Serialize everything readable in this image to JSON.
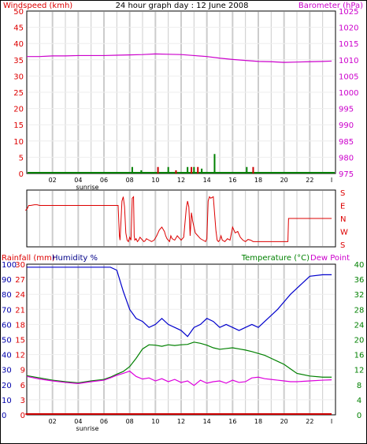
{
  "title": "24 hour graph day : 12 June 2008",
  "colors": {
    "wind": "#008000",
    "gust": "#cc0000",
    "barometer": "#cc00cc",
    "direction": "#dd0000",
    "humidity": "#0000cc",
    "temperature": "#008000",
    "dew": "#dd00dd",
    "rain": "#cc0000",
    "grid": "#cccccc",
    "red_label": "#dd0000",
    "green_label": "#008000",
    "magenta_label": "#cc00cc",
    "axis": "#000000"
  },
  "x_ticks": [
    "02",
    "04",
    "06",
    "08",
    "10",
    "12",
    "14",
    "16",
    "18",
    "20",
    "22",
    "I"
  ],
  "sunrise_label": "sunrise",
  "panel1": {
    "left_label": "Windspeed (kmh)",
    "right_label": "Barometer (hPa)",
    "left_ticks": [
      "0",
      "5",
      "10",
      "15",
      "20",
      "25",
      "30",
      "35",
      "40",
      "45",
      "50"
    ],
    "right_ticks": [
      "975",
      "980",
      "985",
      "990",
      "995",
      "1000",
      "1005",
      "1010",
      "1015",
      "1020",
      "1025"
    ]
  },
  "panel2": {
    "right_ticks": [
      "S",
      "E",
      "N",
      "W",
      "S"
    ]
  },
  "panel3": {
    "left_label_rain": "Rainfall (mm)",
    "left_label_hum": "Humidity %",
    "right_label_temp": "Temperature (°C)",
    "right_label_dew": "Dew Point",
    "hum_ticks": [
      "0",
      "10",
      "20",
      "30",
      "40",
      "50",
      "60",
      "70",
      "80",
      "90",
      "100"
    ],
    "rain_ticks": [
      "0",
      "3",
      "6",
      "9",
      "12",
      "15",
      "18",
      "21",
      "24",
      "27",
      "30"
    ],
    "temp_ticks": [
      "0",
      "4",
      "8",
      "12",
      "16",
      "20",
      "24",
      "28",
      "32",
      "36",
      "40"
    ]
  },
  "chart_data": [
    {
      "type": "line",
      "panel": "wind_barometer",
      "xlim": [
        0,
        24
      ],
      "ylim_left": [
        0,
        50
      ],
      "ylim_right": [
        975,
        1025
      ],
      "series": [
        {
          "name": "Barometer",
          "axis": "right",
          "x": [
            0,
            1,
            2,
            3,
            4,
            5,
            6,
            7,
            8,
            9,
            10,
            11,
            12,
            13,
            14,
            15,
            16,
            17,
            18,
            19,
            20,
            21,
            22,
            23,
            23.7
          ],
          "y": [
            1011,
            1011,
            1011.2,
            1011.2,
            1011.3,
            1011.3,
            1011.3,
            1011.4,
            1011.5,
            1011.6,
            1011.8,
            1011.7,
            1011.6,
            1011.3,
            1011,
            1010.5,
            1010.1,
            1009.8,
            1009.5,
            1009.4,
            1009.2,
            1009.3,
            1009.4,
            1009.5,
            1009.6
          ]
        },
        {
          "name": "Windspeed",
          "axis": "left",
          "x": [
            8.2,
            8.9,
            11.0,
            12.5,
            13.0,
            13.6,
            14.6,
            17.1
          ],
          "y": [
            2,
            1,
            2,
            2,
            2,
            1.5,
            6,
            2
          ]
        },
        {
          "name": "Gust",
          "axis": "left",
          "x": [
            10.2,
            11.6,
            12.8,
            13.3,
            17.6
          ],
          "y": [
            2,
            1,
            2,
            2,
            2
          ]
        }
      ]
    },
    {
      "type": "line",
      "panel": "wind_direction",
      "xlim": [
        0,
        24
      ],
      "ylim": [
        0,
        360
      ],
      "series": [
        {
          "name": "Direction",
          "x": [
            -0.1,
            0.05,
            0.15,
            0.3,
            0.6,
            0.8,
            1.0,
            2.0,
            3.0,
            4.0,
            5.0,
            6.0,
            7.1,
            7.2,
            7.25,
            7.3,
            7.4,
            7.5,
            7.6,
            7.7,
            7.8,
            7.9,
            8.0,
            8.1,
            8.2,
            8.3,
            8.35,
            8.4,
            8.5,
            8.6,
            8.7,
            8.8,
            8.9,
            9.0,
            9.1,
            9.2,
            9.3,
            9.5,
            9.7,
            9.9,
            10.1,
            10.3,
            10.5,
            10.7,
            10.8,
            10.9,
            11.0,
            11.1,
            11.2,
            11.3,
            11.5,
            11.7,
            11.9,
            12.0,
            12.2,
            12.4,
            12.5,
            12.6,
            12.7,
            12.8,
            12.9,
            13.1,
            13.3,
            13.5,
            13.7,
            13.9,
            14.0,
            14.1,
            14.2,
            14.3,
            14.5,
            14.7,
            14.8,
            14.9,
            15.0,
            15.1,
            15.2,
            15.4,
            15.6,
            15.8,
            16.0,
            16.2,
            16.4,
            16.6,
            16.8,
            17.0,
            17.2,
            17.4,
            17.6,
            17.9,
            18.2,
            19.0,
            20.0,
            20.3,
            20.35,
            21.0,
            22.0,
            23.0,
            23.7
          ],
          "y": [
            235,
            250,
            270,
            270,
            275,
            275,
            270,
            270,
            270,
            270,
            270,
            270,
            270,
            60,
            30,
            120,
            300,
            330,
            260,
            80,
            30,
            20,
            50,
            30,
            320,
            330,
            60,
            30,
            40,
            20,
            30,
            50,
            40,
            30,
            20,
            25,
            40,
            30,
            20,
            30,
            60,
            100,
            120,
            90,
            60,
            40,
            30,
            20,
            60,
            40,
            30,
            60,
            40,
            30,
            50,
            250,
            300,
            260,
            60,
            220,
            160,
            80,
            60,
            40,
            30,
            20,
            40,
            300,
            330,
            320,
            330,
            100,
            30,
            20,
            30,
            60,
            30,
            20,
            40,
            30,
            120,
            80,
            90,
            50,
            30,
            20,
            35,
            30,
            20,
            20,
            20,
            20,
            20,
            20,
            180,
            180,
            180,
            180,
            180
          ]
        }
      ]
    },
    {
      "type": "line",
      "panel": "rain_humidity_temperature",
      "xlim": [
        0,
        24
      ],
      "ylim_humidity": [
        0,
        100
      ],
      "ylim_rain": [
        0,
        30
      ],
      "ylim_temperature": [
        0,
        40
      ],
      "series": [
        {
          "name": "Humidity",
          "axis": "humidity",
          "x": [
            0,
            1,
            2,
            3,
            4,
            5,
            6,
            6.5,
            7,
            7.5,
            8,
            8.5,
            9,
            9.5,
            10,
            10.5,
            11,
            11.5,
            12,
            12.5,
            13,
            13.5,
            14,
            14.5,
            15,
            15.5,
            16,
            16.5,
            17,
            17.5,
            18,
            18.5,
            19,
            19.5,
            20,
            20.5,
            21,
            21.5,
            22,
            23,
            23.7
          ],
          "y": [
            98,
            98,
            98,
            98,
            98,
            98,
            98,
            98,
            96,
            82,
            70,
            64,
            62,
            58,
            60,
            64,
            60,
            58,
            56,
            52,
            58,
            60,
            64,
            62,
            58,
            60,
            58,
            56,
            58,
            60,
            58,
            62,
            66,
            70,
            75,
            80,
            84,
            88,
            92,
            93,
            93
          ]
        },
        {
          "name": "Temperature",
          "axis": "temperature",
          "x": [
            0,
            1,
            2,
            3,
            4,
            5,
            6,
            6.5,
            7,
            7.5,
            8,
            8.5,
            9,
            9.5,
            10,
            10.5,
            11,
            11.5,
            12,
            12.5,
            13,
            13.5,
            14,
            14.5,
            15,
            15.5,
            16,
            16.5,
            17,
            17.5,
            18,
            18.5,
            19,
            19.5,
            20,
            20.5,
            21,
            22,
            23,
            23.7
          ],
          "y": [
            10.4,
            9.8,
            9.2,
            8.8,
            8.5,
            9,
            9.4,
            10,
            10.8,
            11.5,
            12.8,
            15,
            17.5,
            18.6,
            18.5,
            18.2,
            18.6,
            18.4,
            18.6,
            18.7,
            19.3,
            19,
            18.5,
            17.8,
            17.4,
            17.6,
            17.8,
            17.5,
            17.2,
            16.8,
            16.3,
            15.8,
            15,
            14.2,
            13.4,
            12.2,
            11,
            10.3,
            10,
            10
          ]
        },
        {
          "name": "Dew Point",
          "axis": "temperature",
          "x": [
            0,
            1,
            2,
            3,
            4,
            5,
            6,
            6.5,
            7,
            7.5,
            8,
            8.5,
            9,
            9.5,
            10,
            10.5,
            11,
            11.5,
            12,
            12.5,
            13,
            13.5,
            14,
            14.5,
            15,
            15.5,
            16,
            16.5,
            17,
            17.5,
            18,
            18.5,
            19,
            19.5,
            20,
            20.5,
            21,
            22,
            23,
            23.7
          ],
          "y": [
            10.2,
            9.5,
            9,
            8.6,
            8.3,
            8.8,
            9.2,
            9.8,
            10.5,
            11,
            11.6,
            10.2,
            9.5,
            9.8,
            9,
            9.6,
            8.8,
            9.4,
            8.6,
            9,
            7.8,
            9.2,
            8.4,
            8.8,
            9,
            8.4,
            9.2,
            8.6,
            8.8,
            9.8,
            10,
            9.6,
            9.4,
            9.2,
            9,
            8.8,
            8.8,
            9,
            9.2,
            9.3
          ]
        },
        {
          "name": "Rainfall",
          "axis": "rain",
          "x": [
            -0.1,
            23.7
          ],
          "y": [
            0,
            0
          ]
        }
      ]
    }
  ]
}
